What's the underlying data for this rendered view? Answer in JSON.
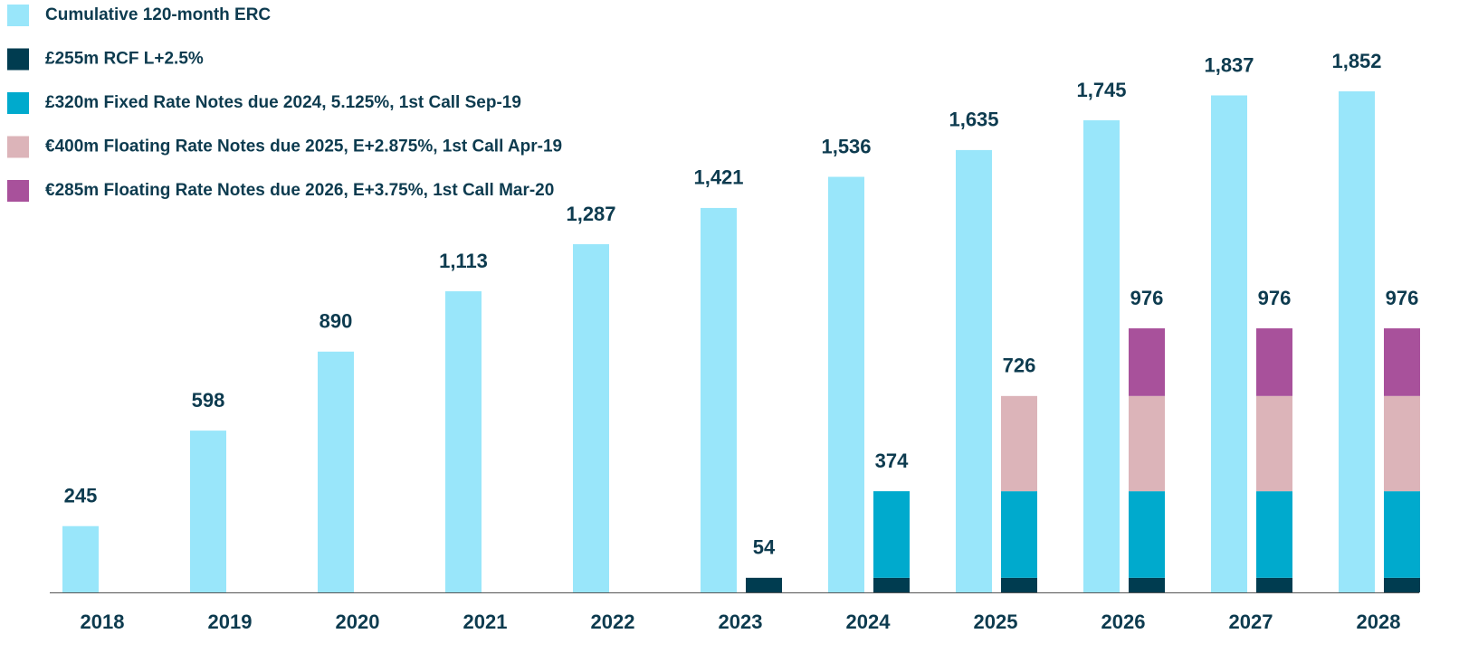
{
  "chart_data": {
    "type": "bar",
    "categories": [
      "2018",
      "2019",
      "2020",
      "2021",
      "2022",
      "2023",
      "2024",
      "2025",
      "2026",
      "2027",
      "2028"
    ],
    "series": [
      {
        "name": "Cumulative 120-month ERC",
        "color": "#99e6fa",
        "values": [
          245,
          598,
          890,
          1113,
          1287,
          1421,
          1536,
          1635,
          1745,
          1837,
          1852
        ],
        "value_labels": [
          "245",
          "598",
          "890",
          "1,113",
          "1,287",
          "1,421",
          "1,536",
          "1,635",
          "1,745",
          "1,837",
          "1,852"
        ]
      },
      {
        "name": "£255m RCF L+2.5%",
        "color": "#003c50",
        "stack": "debt",
        "values": [
          null,
          null,
          null,
          null,
          null,
          54,
          54,
          54,
          54,
          54,
          54
        ]
      },
      {
        "name": "£320m Fixed Rate Notes due 2024, 5.125%, 1st Call Sep-19",
        "color": "#00aacd",
        "stack": "debt",
        "values": [
          null,
          null,
          null,
          null,
          null,
          null,
          320,
          320,
          320,
          320,
          320
        ]
      },
      {
        "name": "€400m Floating Rate Notes due 2025, E+2.875%, 1st Call Apr-19",
        "color": "#dcb4b9",
        "stack": "debt",
        "values": [
          null,
          null,
          null,
          null,
          null,
          null,
          null,
          352,
          352,
          352,
          352
        ]
      },
      {
        "name": "€285m Floating Rate Notes due 2026, E+3.75%, 1st Call Mar-20",
        "color": "#a8519b",
        "stack": "debt",
        "values": [
          null,
          null,
          null,
          null,
          null,
          null,
          null,
          null,
          250,
          250,
          250
        ]
      }
    ],
    "totals": [
      null,
      null,
      null,
      null,
      null,
      54,
      374,
      726,
      976,
      976,
      976
    ],
    "ylim": [
      0,
      1852
    ],
    "grid": false
  }
}
